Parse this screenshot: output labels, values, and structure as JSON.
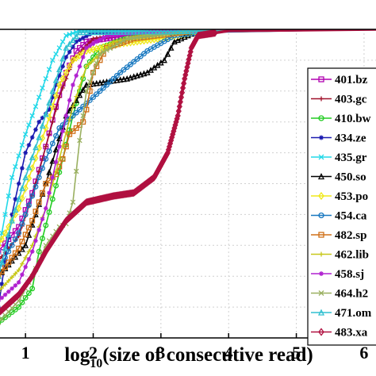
{
  "chart_data": {
    "type": "line",
    "xlabel": {
      "prefix": "log",
      "sub": "10",
      "rest": "(size of consecutive read)"
    },
    "ylabel": "",
    "xlim": [
      0.6,
      6.2
    ],
    "ylim": [
      0,
      1
    ],
    "xticks": [
      {
        "value": 1,
        "label": "1"
      },
      {
        "value": 2,
        "label": "2"
      },
      {
        "value": 3,
        "label": "3"
      },
      {
        "value": 4,
        "label": "4"
      },
      {
        "value": 5,
        "label": "5"
      },
      {
        "value": 6,
        "label": "6"
      }
    ],
    "grid": true,
    "legend_position": "right",
    "series": [
      {
        "name": "401.bz",
        "color": "#b000b0",
        "marker": "square",
        "points": [
          [
            0.6,
            0.28
          ],
          [
            0.9,
            0.36
          ],
          [
            1.1,
            0.47
          ],
          [
            1.3,
            0.62
          ],
          [
            1.45,
            0.75
          ],
          [
            1.6,
            0.86
          ],
          [
            1.75,
            0.93
          ],
          [
            1.9,
            0.96
          ],
          [
            2.5,
            0.98
          ],
          [
            3.5,
            0.995
          ],
          [
            6.2,
            1.0
          ]
        ]
      },
      {
        "name": "403.gc",
        "color": "#a0102a",
        "marker": "plus",
        "points": [
          [
            0.6,
            0.25
          ],
          [
            0.9,
            0.33
          ],
          [
            1.1,
            0.46
          ],
          [
            1.3,
            0.62
          ],
          [
            1.5,
            0.78
          ],
          [
            1.7,
            0.9
          ],
          [
            2.0,
            0.97
          ],
          [
            2.6,
            0.99
          ],
          [
            4.5,
            0.997
          ],
          [
            6.2,
            1.0
          ]
        ]
      },
      {
        "name": "410.bw",
        "color": "#22cc22",
        "marker": "circle",
        "points": [
          [
            0.6,
            0.05
          ],
          [
            0.9,
            0.1
          ],
          [
            1.1,
            0.16
          ],
          [
            1.2,
            0.28
          ],
          [
            1.4,
            0.45
          ],
          [
            1.55,
            0.58
          ],
          [
            1.7,
            0.72
          ],
          [
            1.9,
            0.88
          ],
          [
            2.1,
            0.94
          ],
          [
            2.6,
            0.98
          ],
          [
            3.2,
            0.99
          ],
          [
            6.2,
            1.0
          ]
        ]
      },
      {
        "name": "434.ze",
        "color": "#1a1ab0",
        "marker": "star",
        "points": [
          [
            0.6,
            0.1
          ],
          [
            0.8,
            0.4
          ],
          [
            1.0,
            0.6
          ],
          [
            1.2,
            0.7
          ],
          [
            1.35,
            0.74
          ],
          [
            1.45,
            0.82
          ],
          [
            1.6,
            0.91
          ],
          [
            1.75,
            0.96
          ],
          [
            2.0,
            0.99
          ],
          [
            3.0,
            0.995
          ],
          [
            6.2,
            1.0
          ]
        ]
      },
      {
        "name": "435.gr",
        "color": "#22d8e8",
        "marker": "x",
        "points": [
          [
            0.6,
            0.28
          ],
          [
            0.8,
            0.52
          ],
          [
            1.0,
            0.66
          ],
          [
            1.2,
            0.78
          ],
          [
            1.4,
            0.9
          ],
          [
            1.6,
            0.98
          ],
          [
            1.8,
            0.995
          ],
          [
            6.2,
            1.0
          ]
        ]
      },
      {
        "name": "450.so",
        "color": "#000000",
        "marker": "triangle",
        "points": [
          [
            0.6,
            0.2
          ],
          [
            1.0,
            0.3
          ],
          [
            1.3,
            0.5
          ],
          [
            1.6,
            0.72
          ],
          [
            1.9,
            0.82
          ],
          [
            2.2,
            0.83
          ],
          [
            2.5,
            0.84
          ],
          [
            2.8,
            0.86
          ],
          [
            3.05,
            0.9
          ],
          [
            3.2,
            0.96
          ],
          [
            3.5,
            0.99
          ],
          [
            6.2,
            1.0
          ]
        ]
      },
      {
        "name": "453.po",
        "color": "#f0e81a",
        "marker": "diamond",
        "points": [
          [
            0.6,
            0.3
          ],
          [
            0.9,
            0.42
          ],
          [
            1.1,
            0.55
          ],
          [
            1.3,
            0.68
          ],
          [
            1.5,
            0.82
          ],
          [
            1.7,
            0.9
          ],
          [
            1.9,
            0.93
          ],
          [
            2.3,
            0.95
          ],
          [
            3.0,
            0.97
          ],
          [
            3.5,
            0.99
          ],
          [
            6.2,
            1.0
          ]
        ]
      },
      {
        "name": "454.ca",
        "color": "#1878c0",
        "marker": "circle",
        "points": [
          [
            0.6,
            0.22
          ],
          [
            0.9,
            0.34
          ],
          [
            1.1,
            0.46
          ],
          [
            1.3,
            0.58
          ],
          [
            1.5,
            0.68
          ],
          [
            1.7,
            0.72
          ],
          [
            1.9,
            0.76
          ],
          [
            2.1,
            0.8
          ],
          [
            2.4,
            0.86
          ],
          [
            2.8,
            0.93
          ],
          [
            3.2,
            0.98
          ],
          [
            3.6,
            0.99
          ],
          [
            6.2,
            1.0
          ]
        ]
      },
      {
        "name": "482.sp",
        "color": "#d07018",
        "marker": "square",
        "points": [
          [
            0.6,
            0.2
          ],
          [
            0.9,
            0.29
          ],
          [
            1.1,
            0.38
          ],
          [
            1.3,
            0.5
          ],
          [
            1.45,
            0.53
          ],
          [
            1.55,
            0.58
          ],
          [
            1.65,
            0.66
          ],
          [
            1.75,
            0.68
          ],
          [
            1.85,
            0.7
          ],
          [
            1.9,
            0.74
          ],
          [
            2.0,
            0.86
          ],
          [
            2.2,
            0.94
          ],
          [
            2.6,
            0.97
          ],
          [
            3.5,
            0.995
          ],
          [
            6.2,
            1.0
          ]
        ]
      },
      {
        "name": "462.lib",
        "color": "#c8c81a",
        "marker": "plus",
        "points": [
          [
            0.6,
            0.15
          ],
          [
            0.9,
            0.22
          ],
          [
            1.1,
            0.3
          ],
          [
            1.3,
            0.42
          ],
          [
            1.5,
            0.58
          ],
          [
            1.7,
            0.75
          ],
          [
            1.9,
            0.88
          ],
          [
            2.3,
            0.96
          ],
          [
            3.0,
            0.99
          ],
          [
            6.2,
            1.0
          ]
        ]
      },
      {
        "name": "458.sj",
        "color": "#b020d0",
        "marker": "star",
        "points": [
          [
            0.6,
            0.12
          ],
          [
            0.9,
            0.18
          ],
          [
            1.1,
            0.28
          ],
          [
            1.3,
            0.42
          ],
          [
            1.5,
            0.62
          ],
          [
            1.7,
            0.82
          ],
          [
            1.9,
            0.94
          ],
          [
            2.2,
            0.98
          ],
          [
            3.0,
            0.995
          ],
          [
            6.2,
            1.0
          ]
        ]
      },
      {
        "name": "464.h2",
        "color": "#9ab060",
        "marker": "x",
        "points": [
          [
            0.6,
            0.05
          ],
          [
            0.9,
            0.12
          ],
          [
            1.1,
            0.2
          ],
          [
            1.3,
            0.3
          ],
          [
            1.5,
            0.36
          ],
          [
            1.6,
            0.37
          ],
          [
            1.7,
            0.44
          ],
          [
            1.8,
            0.64
          ],
          [
            1.9,
            0.8
          ],
          [
            2.1,
            0.92
          ],
          [
            2.5,
            0.97
          ],
          [
            3.5,
            0.995
          ],
          [
            6.2,
            1.0
          ]
        ]
      },
      {
        "name": "471.om",
        "color": "#30c0d0",
        "marker": "triangle",
        "points": [
          [
            0.6,
            0.2
          ],
          [
            0.8,
            0.38
          ],
          [
            1.0,
            0.52
          ],
          [
            1.2,
            0.65
          ],
          [
            1.4,
            0.8
          ],
          [
            1.6,
            0.94
          ],
          [
            1.8,
            0.99
          ],
          [
            6.2,
            1.0
          ]
        ]
      },
      {
        "name": "483.xa",
        "color": "#b01040",
        "marker": "diamond",
        "points": [
          [
            0.6,
            0.08
          ],
          [
            0.9,
            0.14
          ],
          [
            1.1,
            0.2
          ],
          [
            1.3,
            0.28
          ],
          [
            1.6,
            0.38
          ],
          [
            1.9,
            0.44
          ],
          [
            2.3,
            0.46
          ],
          [
            2.6,
            0.47
          ],
          [
            2.9,
            0.52
          ],
          [
            3.1,
            0.6
          ],
          [
            3.25,
            0.72
          ],
          [
            3.35,
            0.84
          ],
          [
            3.45,
            0.94
          ],
          [
            3.55,
            0.98
          ],
          [
            4.0,
            0.995
          ],
          [
            6.2,
            1.0
          ]
        ]
      }
    ]
  }
}
